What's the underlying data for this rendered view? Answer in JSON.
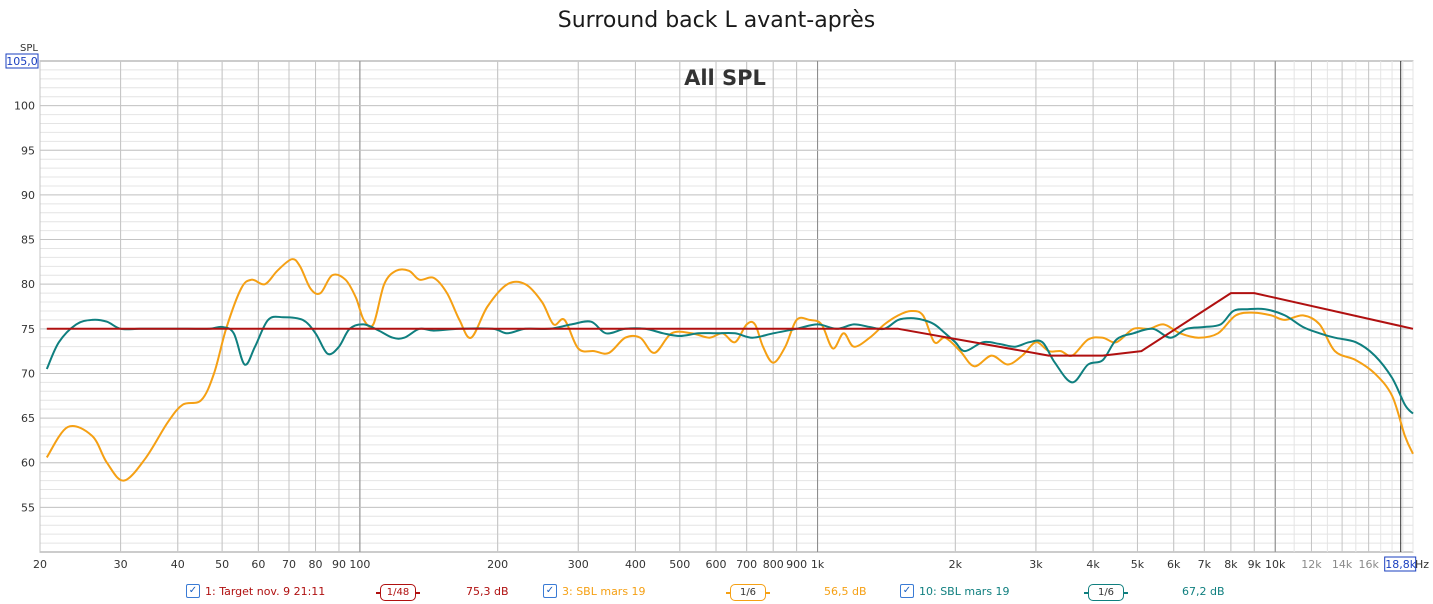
{
  "chart_data": {
    "type": "line",
    "title": "Surround back L avant-après",
    "annotation": "All SPL",
    "ylabel": "SPL",
    "xlabel": "Hz",
    "x_scale": "log",
    "xlim": [
      20,
      20000
    ],
    "ylim": [
      50,
      105
    ],
    "y_max_label": "105,0",
    "x_end_label": "18,8k",
    "x_ticks": [
      {
        "v": 20,
        "l": "20"
      },
      {
        "v": 30,
        "l": "30"
      },
      {
        "v": 40,
        "l": "40"
      },
      {
        "v": 50,
        "l": "50"
      },
      {
        "v": 60,
        "l": "60"
      },
      {
        "v": 70,
        "l": "70"
      },
      {
        "v": 80,
        "l": "80"
      },
      {
        "v": 90,
        "l": "90"
      },
      {
        "v": 100,
        "l": "100"
      },
      {
        "v": 200,
        "l": "200"
      },
      {
        "v": 300,
        "l": "300"
      },
      {
        "v": 400,
        "l": "400"
      },
      {
        "v": 500,
        "l": "500"
      },
      {
        "v": 600,
        "l": "600"
      },
      {
        "v": 700,
        "l": "700"
      },
      {
        "v": 800,
        "l": "800"
      },
      {
        "v": 900,
        "l": "900"
      },
      {
        "v": 1000,
        "l": "1k"
      },
      {
        "v": 2000,
        "l": "2k"
      },
      {
        "v": 3000,
        "l": "3k"
      },
      {
        "v": 4000,
        "l": "4k"
      },
      {
        "v": 5000,
        "l": "5k"
      },
      {
        "v": 6000,
        "l": "6k"
      },
      {
        "v": 7000,
        "l": "7k"
      },
      {
        "v": 8000,
        "l": "8k"
      },
      {
        "v": 9000,
        "l": "9k"
      },
      {
        "v": 10000,
        "l": "10k"
      },
      {
        "v": 12000,
        "l": "12k"
      },
      {
        "v": 14000,
        "l": "14k"
      },
      {
        "v": 16000,
        "l": "16k"
      }
    ],
    "y_ticks": [
      55,
      60,
      65,
      70,
      75,
      80,
      85,
      90,
      95,
      100
    ],
    "grid": true,
    "cursor_x": 18800,
    "series": [
      {
        "name": "1: Target nov. 9 21:11",
        "color": "#b01010",
        "smoothing": "1/48",
        "level": "75,3 dB",
        "points": [
          [
            20.7,
            75
          ],
          [
            1500,
            75
          ],
          [
            3200,
            72
          ],
          [
            4200,
            72
          ],
          [
            5100,
            72.5
          ],
          [
            8000,
            79
          ],
          [
            9000,
            79
          ],
          [
            20000,
            75
          ]
        ]
      },
      {
        "name": "3: SBL mars 19",
        "color": "#f5a014",
        "smoothing": "1/6",
        "level": "56,5 dB",
        "points": [
          [
            20.7,
            60.6
          ],
          [
            23,
            64
          ],
          [
            26,
            63
          ],
          [
            28,
            60
          ],
          [
            30.5,
            58
          ],
          [
            34,
            60.5
          ],
          [
            38,
            64.5
          ],
          [
            41,
            66.5
          ],
          [
            45,
            67
          ],
          [
            48,
            70
          ],
          [
            51,
            75
          ],
          [
            55,
            79.5
          ],
          [
            58,
            80.5
          ],
          [
            62,
            80
          ],
          [
            66,
            81.5
          ],
          [
            71,
            82.8
          ],
          [
            74,
            82
          ],
          [
            78,
            79.5
          ],
          [
            82,
            79
          ],
          [
            87,
            81
          ],
          [
            93,
            80.5
          ],
          [
            98,
            78.5
          ],
          [
            102,
            76
          ],
          [
            107,
            75.5
          ],
          [
            113,
            80
          ],
          [
            120,
            81.5
          ],
          [
            128,
            81.5
          ],
          [
            135,
            80.5
          ],
          [
            145,
            80.7
          ],
          [
            155,
            79
          ],
          [
            165,
            76
          ],
          [
            175,
            74
          ],
          [
            190,
            77.5
          ],
          [
            210,
            80
          ],
          [
            230,
            80
          ],
          [
            250,
            78
          ],
          [
            265,
            75.5
          ],
          [
            280,
            76
          ],
          [
            300,
            72.8
          ],
          [
            325,
            72.5
          ],
          [
            350,
            72.3
          ],
          [
            380,
            74
          ],
          [
            410,
            74
          ],
          [
            440,
            72.3
          ],
          [
            480,
            74.5
          ],
          [
            530,
            74.5
          ],
          [
            580,
            74
          ],
          [
            620,
            74.5
          ],
          [
            660,
            73.5
          ],
          [
            700,
            75.5
          ],
          [
            730,
            75.5
          ],
          [
            760,
            73
          ],
          [
            800,
            71.2
          ],
          [
            850,
            73
          ],
          [
            900,
            76
          ],
          [
            960,
            76
          ],
          [
            1020,
            75.5
          ],
          [
            1080,
            72.8
          ],
          [
            1140,
            74.5
          ],
          [
            1200,
            73
          ],
          [
            1300,
            74
          ],
          [
            1400,
            75.5
          ],
          [
            1500,
            76.5
          ],
          [
            1600,
            77
          ],
          [
            1700,
            76.5
          ],
          [
            1800,
            73.5
          ],
          [
            1900,
            74
          ],
          [
            2050,
            72.5
          ],
          [
            2200,
            70.8
          ],
          [
            2400,
            72
          ],
          [
            2600,
            71
          ],
          [
            2800,
            72
          ],
          [
            3000,
            73.5
          ],
          [
            3200,
            72.5
          ],
          [
            3400,
            72.5
          ],
          [
            3600,
            72
          ],
          [
            3900,
            73.8
          ],
          [
            4200,
            74
          ],
          [
            4500,
            73.5
          ],
          [
            4900,
            75
          ],
          [
            5300,
            75
          ],
          [
            5700,
            75.5
          ],
          [
            6200,
            74.5
          ],
          [
            6800,
            74
          ],
          [
            7500,
            74.5
          ],
          [
            8200,
            76.5
          ],
          [
            9000,
            76.8
          ],
          [
            9800,
            76.5
          ],
          [
            10500,
            76
          ],
          [
            11500,
            76.5
          ],
          [
            12500,
            75.5
          ],
          [
            13500,
            72.5
          ],
          [
            15000,
            71.5
          ],
          [
            16500,
            70
          ],
          [
            18000,
            67.5
          ],
          [
            19200,
            63
          ],
          [
            20000,
            61
          ]
        ]
      },
      {
        "name": "10: SBL mars 19",
        "color": "#0f7f7f",
        "smoothing": "1/6",
        "level": "67,2 dB",
        "points": [
          [
            20.7,
            70.5
          ],
          [
            22,
            73.5
          ],
          [
            24,
            75.5
          ],
          [
            26,
            76
          ],
          [
            28,
            75.8
          ],
          [
            30,
            75
          ],
          [
            33,
            75
          ],
          [
            37,
            75
          ],
          [
            42,
            75
          ],
          [
            47,
            75
          ],
          [
            50,
            75.2
          ],
          [
            53,
            74.5
          ],
          [
            56,
            71
          ],
          [
            59,
            73
          ],
          [
            63,
            76
          ],
          [
            68,
            76.3
          ],
          [
            75,
            76
          ],
          [
            80,
            74.5
          ],
          [
            85,
            72.2
          ],
          [
            90,
            73
          ],
          [
            95,
            75
          ],
          [
            102,
            75.5
          ],
          [
            110,
            74.8
          ],
          [
            118,
            74
          ],
          [
            125,
            74
          ],
          [
            135,
            75
          ],
          [
            145,
            74.8
          ],
          [
            165,
            75
          ],
          [
            195,
            75
          ],
          [
            210,
            74.5
          ],
          [
            230,
            75
          ],
          [
            260,
            75
          ],
          [
            290,
            75.5
          ],
          [
            320,
            75.8
          ],
          [
            345,
            74.5
          ],
          [
            380,
            75
          ],
          [
            420,
            75
          ],
          [
            460,
            74.5
          ],
          [
            500,
            74.2
          ],
          [
            550,
            74.5
          ],
          [
            600,
            74.5
          ],
          [
            660,
            74.5
          ],
          [
            720,
            74
          ],
          [
            800,
            74.5
          ],
          [
            900,
            75
          ],
          [
            1000,
            75.5
          ],
          [
            1100,
            75
          ],
          [
            1200,
            75.5
          ],
          [
            1300,
            75.2
          ],
          [
            1400,
            75
          ],
          [
            1500,
            76
          ],
          [
            1600,
            76.2
          ],
          [
            1700,
            76
          ],
          [
            1800,
            75.5
          ],
          [
            1900,
            74.5
          ],
          [
            2000,
            73.5
          ],
          [
            2100,
            72.5
          ],
          [
            2300,
            73.5
          ],
          [
            2500,
            73.3
          ],
          [
            2700,
            73
          ],
          [
            2900,
            73.5
          ],
          [
            3100,
            73.5
          ],
          [
            3300,
            71.2
          ],
          [
            3600,
            69
          ],
          [
            3900,
            71
          ],
          [
            4200,
            71.5
          ],
          [
            4500,
            73.8
          ],
          [
            4900,
            74.5
          ],
          [
            5400,
            75
          ],
          [
            5900,
            74
          ],
          [
            6400,
            75
          ],
          [
            7000,
            75.2
          ],
          [
            7600,
            75.5
          ],
          [
            8100,
            77
          ],
          [
            8700,
            77.2
          ],
          [
            9500,
            77.2
          ],
          [
            10500,
            76.5
          ],
          [
            11500,
            75.2
          ],
          [
            12500,
            74.5
          ],
          [
            13500,
            74
          ],
          [
            15000,
            73.5
          ],
          [
            16500,
            72
          ],
          [
            18000,
            69.5
          ],
          [
            19200,
            66.5
          ],
          [
            20000,
            65.5
          ]
        ]
      }
    ]
  },
  "legend": [
    {
      "label": "1: Target nov. 9 21:11",
      "smoothing": "1/48",
      "level": "75,3 dB",
      "color": "#b01010"
    },
    {
      "label": "3: SBL mars 19",
      "smoothing": "1/6",
      "level": "56,5 dB",
      "color": "#f5a014"
    },
    {
      "label": "10: SBL mars 19",
      "smoothing": "1/6",
      "level": "67,2 dB",
      "color": "#0f7f7f"
    }
  ]
}
